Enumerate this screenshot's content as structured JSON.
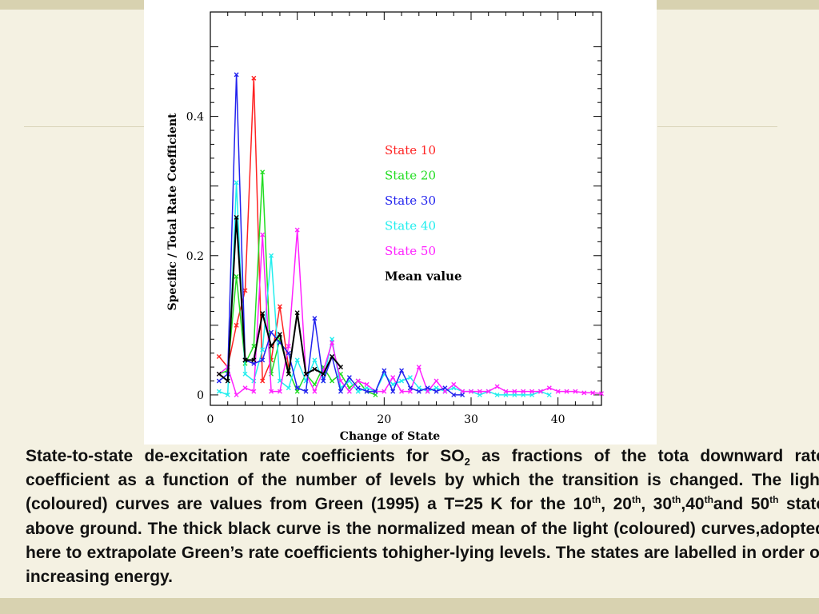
{
  "chart_data": {
    "type": "line",
    "xlabel": "Change of State",
    "ylabel": "Specific / Total Rate Coefficient",
    "xlim": [
      0,
      45
    ],
    "ylim": [
      -0.015,
      0.55
    ],
    "xticks": [
      0,
      10,
      20,
      30,
      40
    ],
    "yticks": [
      0,
      0.2,
      0.4
    ],
    "grid": false,
    "legend_position": "center-right",
    "series": [
      {
        "name": "State 10",
        "color": "#ff2222",
        "x": [
          1,
          2,
          3,
          4,
          5,
          6,
          7,
          8,
          9
        ],
        "y": [
          0.055,
          0.04,
          0.1,
          0.15,
          0.455,
          0.02,
          0.05,
          0.127,
          0.04
        ]
      },
      {
        "name": "State 20",
        "color": "#22dd22",
        "x": [
          1,
          2,
          3,
          4,
          5,
          6,
          7,
          8,
          9,
          10,
          11,
          12,
          13,
          14,
          15,
          16,
          17,
          18,
          19
        ],
        "y": [
          0.03,
          0.035,
          0.17,
          0.045,
          0.07,
          0.32,
          0.03,
          0.08,
          0.035,
          0.005,
          0.03,
          0.015,
          0.04,
          0.02,
          0.03,
          0.01,
          0.02,
          0.005,
          0.0
        ]
      },
      {
        "name": "State 30",
        "color": "#2222ee",
        "x": [
          1,
          2,
          3,
          4,
          5,
          6,
          7,
          8,
          9,
          10,
          11,
          12,
          13,
          14,
          15,
          16,
          17,
          18,
          19,
          20,
          21,
          22,
          23,
          24,
          25,
          26,
          27,
          28,
          29
        ],
        "y": [
          0.02,
          0.03,
          0.46,
          0.05,
          0.045,
          0.05,
          0.09,
          0.075,
          0.06,
          0.01,
          0.005,
          0.11,
          0.02,
          0.055,
          0.005,
          0.025,
          0.01,
          0.005,
          0.005,
          0.035,
          0.005,
          0.035,
          0.01,
          0.005,
          0.01,
          0.005,
          0.01,
          0.0,
          0.0
        ]
      },
      {
        "name": "State 40",
        "color": "#22eeee",
        "x": [
          1,
          2,
          3,
          4,
          5,
          6,
          7,
          8,
          9,
          10,
          11,
          12,
          13,
          14,
          15,
          16,
          17,
          18,
          19,
          20,
          21,
          22,
          23,
          24,
          25,
          26,
          27,
          28,
          29,
          30,
          31,
          32,
          33,
          34,
          35,
          36,
          37,
          38,
          39
        ],
        "y": [
          0.005,
          0.0,
          0.305,
          0.03,
          0.02,
          0.065,
          0.2,
          0.02,
          0.01,
          0.05,
          0.02,
          0.05,
          0.02,
          0.08,
          0.01,
          0.02,
          0.005,
          0.01,
          0.005,
          0.03,
          0.015,
          0.02,
          0.025,
          0.01,
          0.005,
          0.01,
          0.005,
          0.01,
          0.005,
          0.005,
          0.0,
          0.005,
          0.0,
          0.0,
          0.0,
          0.0,
          0.0,
          0.005,
          0.0
        ]
      },
      {
        "name": "State 50",
        "color": "#ff22ff",
        "x": [
          1,
          2,
          3,
          4,
          5,
          6,
          7,
          8,
          9,
          10,
          11,
          12,
          13,
          14,
          15,
          16,
          17,
          18,
          19,
          20,
          21,
          22,
          23,
          24,
          25,
          26,
          27,
          28,
          29,
          30,
          31,
          32,
          33,
          34,
          35,
          36,
          37,
          38,
          39,
          40,
          41,
          42,
          43,
          44,
          45
        ],
        "y": [
          0.03,
          0.04,
          0.0,
          0.01,
          0.005,
          0.23,
          0.005,
          0.005,
          0.07,
          0.237,
          0.03,
          0.005,
          0.035,
          0.075,
          0.02,
          0.005,
          0.02,
          0.015,
          0.005,
          0.005,
          0.025,
          0.005,
          0.005,
          0.04,
          0.005,
          0.02,
          0.005,
          0.015,
          0.005,
          0.005,
          0.005,
          0.005,
          0.012,
          0.005,
          0.005,
          0.005,
          0.005,
          0.005,
          0.01,
          0.005,
          0.005,
          0.005,
          0.003,
          0.003,
          0.002
        ]
      },
      {
        "name": "Mean value",
        "color": "#000000",
        "x": [
          1,
          2,
          3,
          4,
          5,
          6,
          7,
          8,
          9,
          10,
          11,
          12,
          13,
          14,
          15
        ],
        "y": [
          0.03,
          0.02,
          0.255,
          0.05,
          0.05,
          0.117,
          0.07,
          0.087,
          0.03,
          0.118,
          0.03,
          0.037,
          0.03,
          0.055,
          0.04
        ]
      }
    ]
  },
  "caption": {
    "line1": "State-to-state de-excitation rate coefficients for SO",
    "line1_sub": "2",
    "line1_end": " as fractions of the tota",
    "line2": "downward rate coefficient as a function of the number of levels by which the",
    "line3": "transition is changed. The light (coloured) curves are values from Green (1995) a",
    "line4a": "T=25 K for the 10",
    "sup_th": "th",
    "line4b": ", 20",
    "line4c": ", 30",
    "line4d": ",40",
    "line4e": "and 50",
    "line4f": " state above ground. The thick black",
    "line5": "curve is the normalized mean of the light (coloured) curves,adopted here to",
    "line6": "extrapolate Green’s rate coefficients tohigher-lying levels. The states are labelled",
    "line7": "in order of increasing energy."
  }
}
